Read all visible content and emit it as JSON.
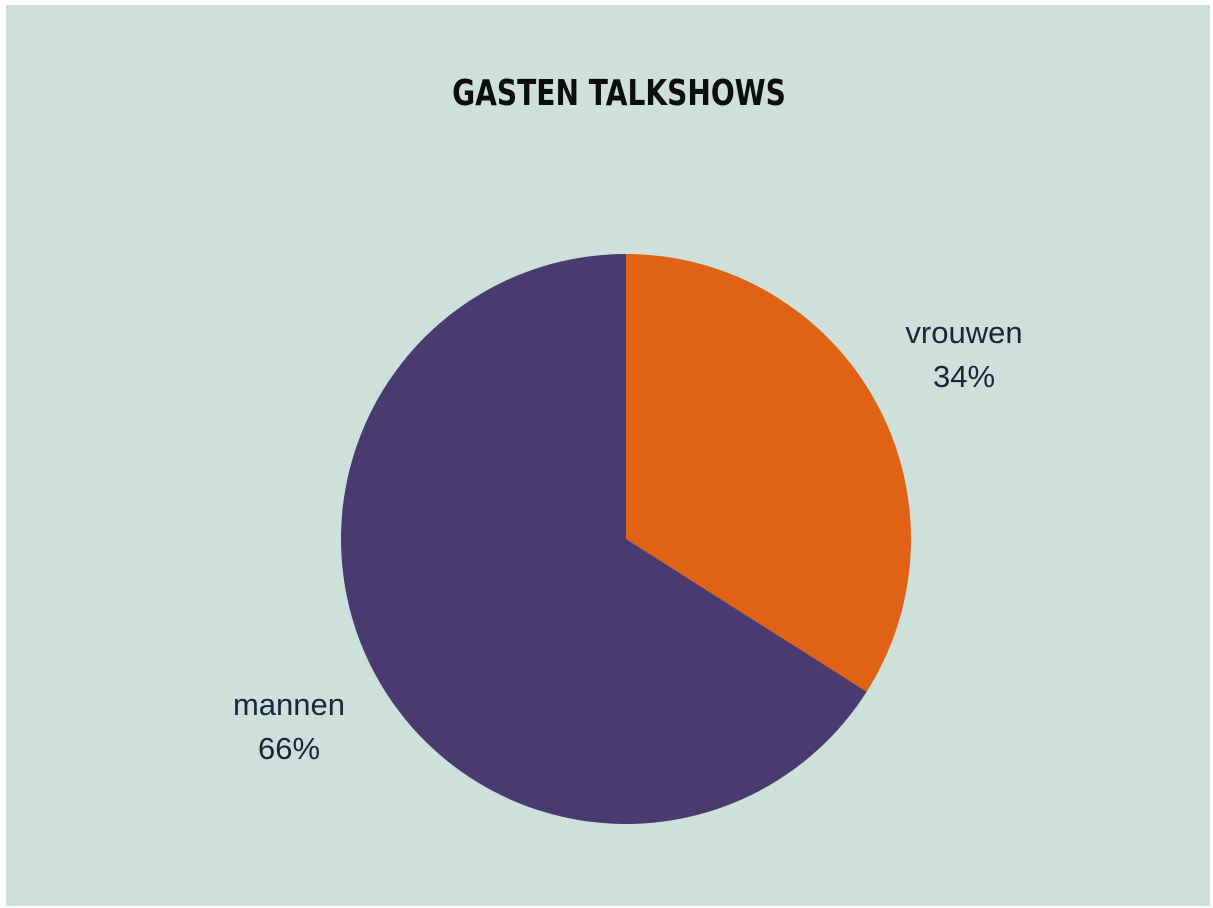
{
  "chart_data": {
    "type": "pie",
    "title": "GASTEN TALKSHOWS",
    "slices": [
      {
        "label": "vrouwen",
        "value": 34,
        "value_label": "34%",
        "color": "#e06215"
      },
      {
        "label": "mannen",
        "value": 66,
        "value_label": "66%",
        "color": "#493a70"
      }
    ],
    "start": "12 o'clock",
    "direction": "clockwise",
    "legend": "none",
    "background": "#cde0da"
  }
}
